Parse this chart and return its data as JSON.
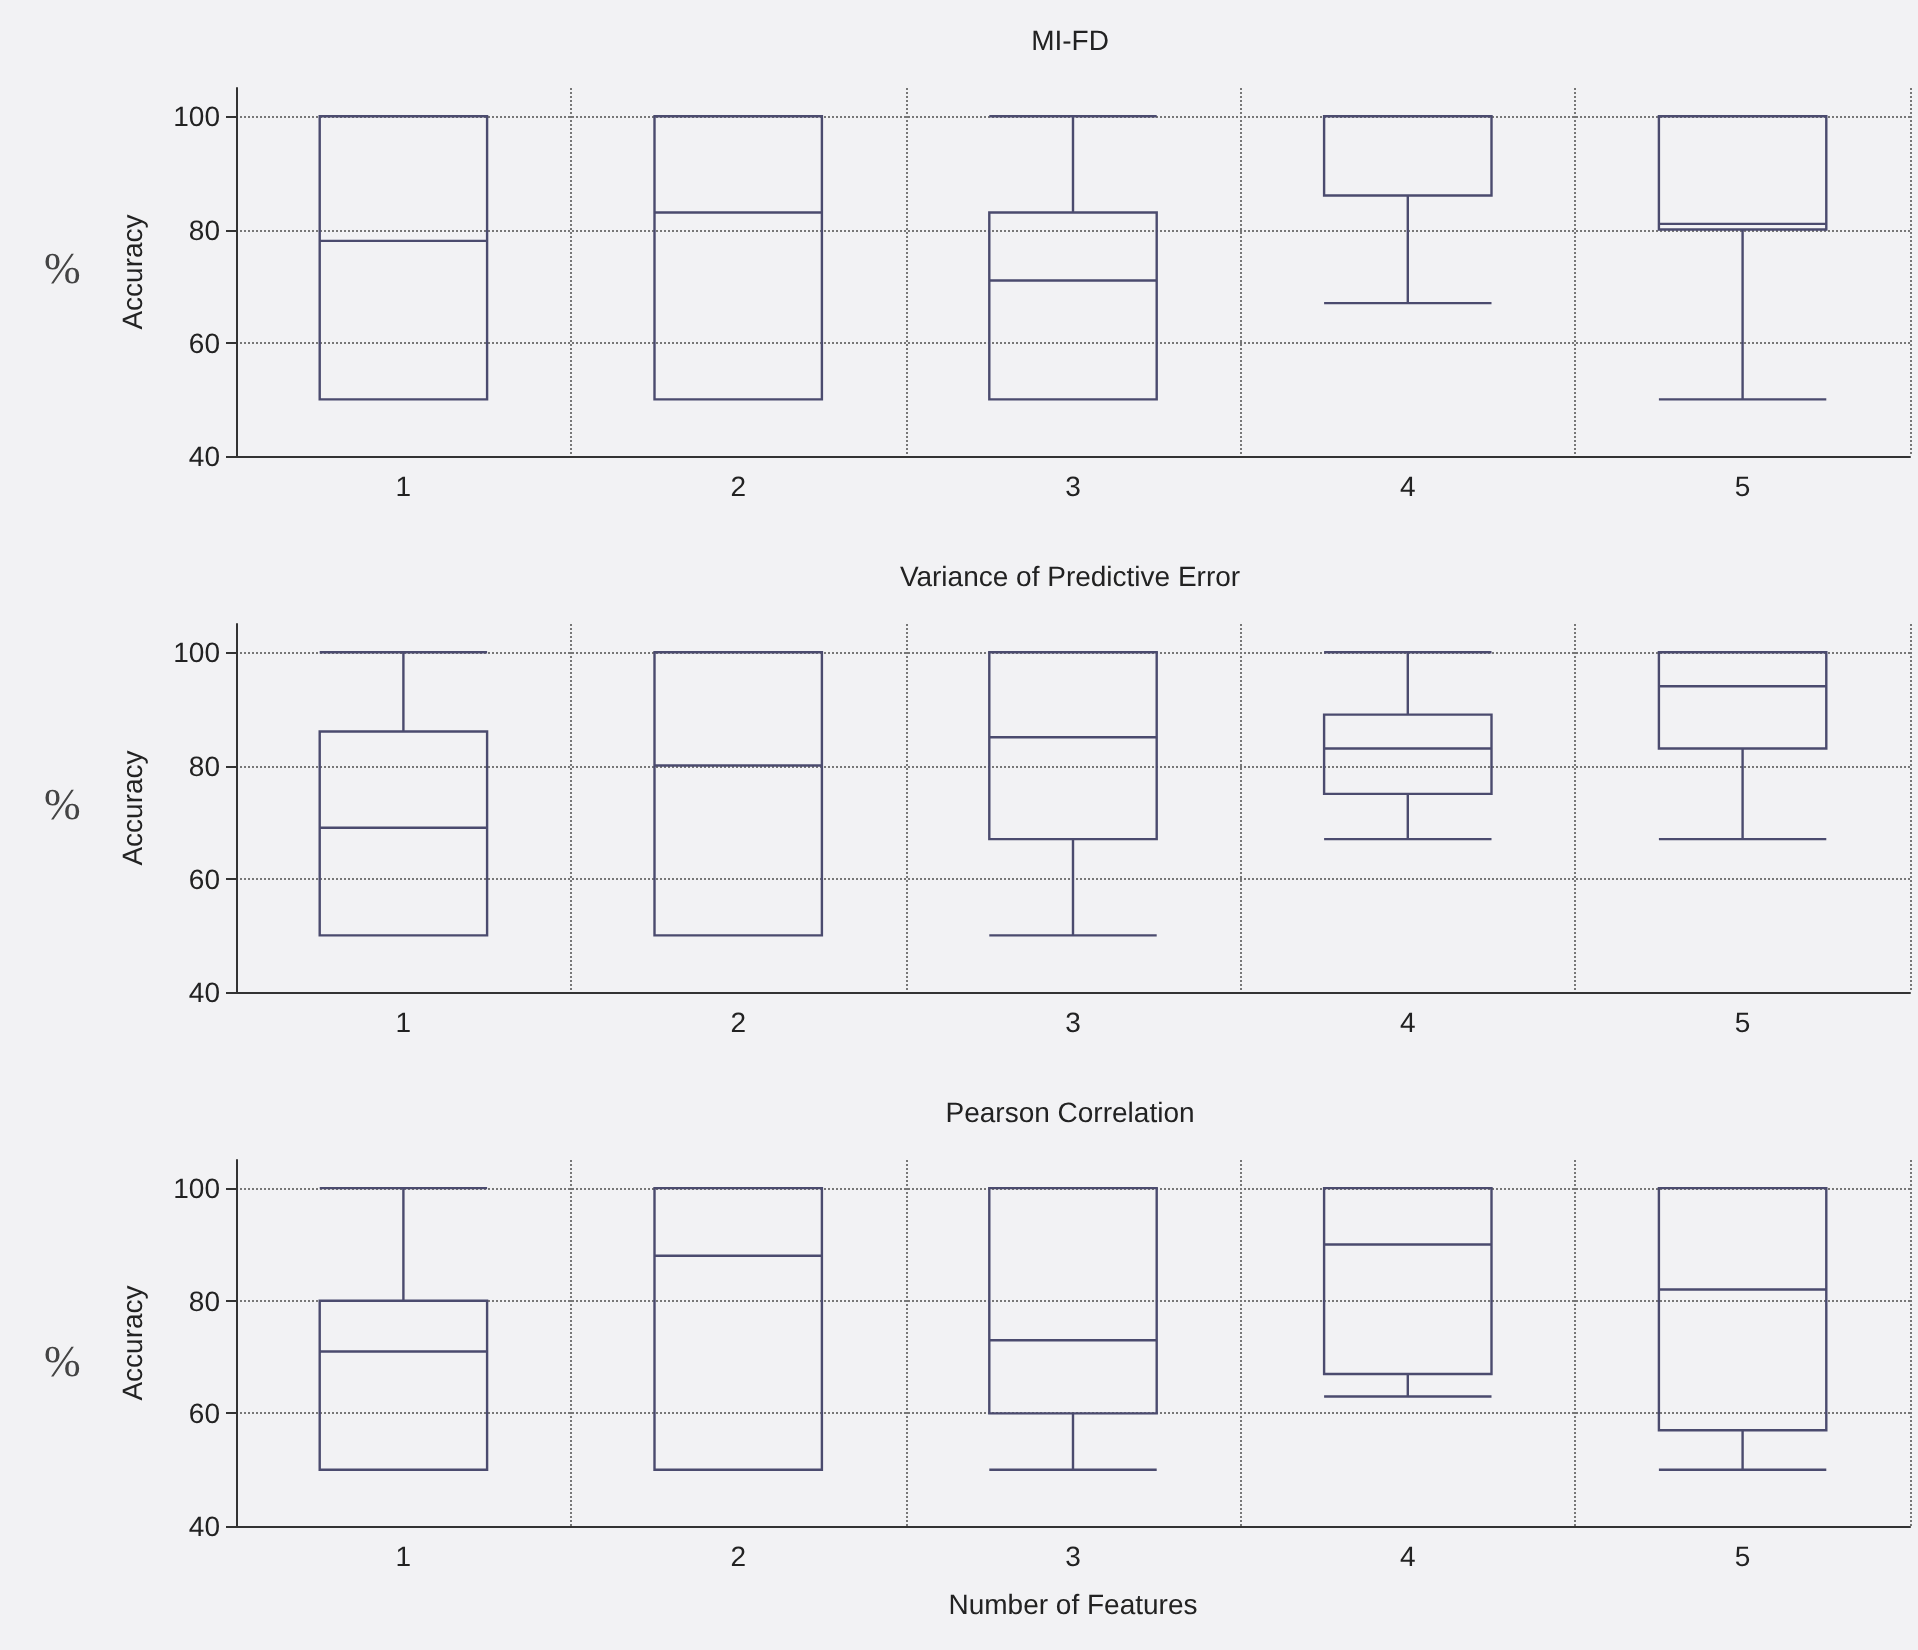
{
  "chart_data": [
    {
      "type": "box",
      "title": "MI-FD",
      "ylabel": "Accuracy",
      "annotations": [
        "%"
      ],
      "categories": [
        "1",
        "2",
        "3",
        "4",
        "5"
      ],
      "ylim": [
        40,
        105
      ],
      "yticks": [
        40,
        60,
        80,
        100
      ],
      "grid": true,
      "tick_labels": "xy",
      "series": [
        {
          "color": "#4b4b6e",
          "boxes": [
            {
              "low": 50,
              "q1": 50,
              "median": 78,
              "q3": 100,
              "high": 100
            },
            {
              "low": 50,
              "q1": 50,
              "median": 83,
              "q3": 100,
              "high": 100
            },
            {
              "low": 50,
              "q1": 50,
              "median": 71,
              "q3": 83,
              "high": 100
            },
            {
              "low": 67,
              "q1": 86,
              "median": 100,
              "q3": 100,
              "high": 100
            },
            {
              "low": 50,
              "q1": 80,
              "median": 81,
              "q3": 100,
              "high": 100
            }
          ]
        }
      ]
    },
    {
      "type": "box",
      "title": "Variance of Predictive Error",
      "ylabel": "Accuracy",
      "annotations": [
        "%"
      ],
      "categories": [
        "1",
        "2",
        "3",
        "4",
        "5"
      ],
      "ylim": [
        40,
        105
      ],
      "yticks": [
        40,
        60,
        80,
        100
      ],
      "grid": true,
      "series": [
        {
          "color": "#4b4b6e",
          "boxes": [
            {
              "low": 50,
              "q1": 50,
              "median": 69,
              "q3": 86,
              "high": 100
            },
            {
              "low": 50,
              "q1": 50,
              "median": 80,
              "q3": 100,
              "high": 100
            },
            {
              "low": 50,
              "q1": 67,
              "median": 85,
              "q3": 100,
              "high": 100
            },
            {
              "low": 67,
              "q1": 75,
              "median": 83,
              "q3": 89,
              "high": 100
            },
            {
              "low": 67,
              "q1": 83,
              "median": 94,
              "q3": 100,
              "high": 100
            }
          ]
        }
      ]
    },
    {
      "type": "box",
      "title": "Pearson Correlation",
      "xlabel": "Number of Features",
      "ylabel": "Accuracy",
      "annotations": [
        "%"
      ],
      "categories": [
        "1",
        "2",
        "3",
        "4",
        "5"
      ],
      "ylim": [
        40,
        105
      ],
      "yticks": [
        40,
        60,
        80,
        100
      ],
      "grid": true,
      "series": [
        {
          "color": "#4b4b6e",
          "boxes": [
            {
              "low": 50,
              "q1": 50,
              "median": 71,
              "q3": 80,
              "high": 100
            },
            {
              "low": 50,
              "q1": 50,
              "median": 88,
              "q3": 100,
              "high": 100
            },
            {
              "low": 50,
              "q1": 60,
              "median": 73,
              "q3": 100,
              "high": 100
            },
            {
              "low": 63,
              "q1": 67,
              "median": 90,
              "q3": 100,
              "high": 100
            },
            {
              "low": 50,
              "q1": 57,
              "median": 82,
              "q3": 100,
              "high": 100
            }
          ]
        }
      ]
    }
  ]
}
